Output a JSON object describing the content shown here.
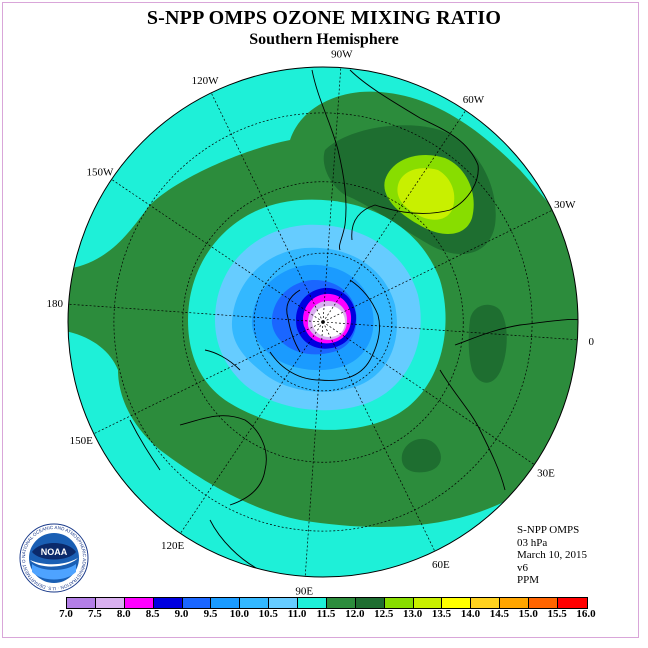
{
  "header": {
    "title": "S-NPP OMPS OZONE MIXING RATIO",
    "subtitle": "Southern Hemisphere"
  },
  "map": {
    "projection": "south-polar-stereographic",
    "longitude_labels": [
      {
        "text": "0",
        "lon": 0
      },
      {
        "text": "30E",
        "lon": 30
      },
      {
        "text": "60E",
        "lon": 60
      },
      {
        "text": "90E",
        "lon": 90
      },
      {
        "text": "120E",
        "lon": 120
      },
      {
        "text": "150E",
        "lon": 150
      },
      {
        "text": "180",
        "lon": 180
      },
      {
        "text": "150W",
        "lon": -150
      },
      {
        "text": "120W",
        "lon": -120
      },
      {
        "text": "90W",
        "lon": -90
      },
      {
        "text": "60W",
        "lon": -60
      },
      {
        "text": "30W",
        "lon": -30
      }
    ]
  },
  "info": {
    "instrument": "S-NPP OMPS",
    "level": "03 hPa",
    "date": "March 10, 2015",
    "version": "v6",
    "units": "PPM"
  },
  "colorbar": {
    "ticks": [
      "7.0",
      "7.5",
      "8.0",
      "8.5",
      "9.0",
      "9.5",
      "10.0",
      "10.5",
      "11.0",
      "11.5",
      "12.0",
      "12.5",
      "13.0",
      "13.5",
      "14.0",
      "14.5",
      "15.0",
      "15.5",
      "16.0"
    ],
    "colors": [
      "#b37fe6",
      "#d9b0f0",
      "#ff00ff",
      "#0000e0",
      "#1a66ff",
      "#1a9bff",
      "#33b8ff",
      "#66ccff",
      "#1ef0d8",
      "#2c8c3c",
      "#1e6e30",
      "#88dd00",
      "#c8f000",
      "#ffff00",
      "#ffd21e",
      "#ffa500",
      "#ff6400",
      "#ff0000",
      "#8b5a3c"
    ]
  },
  "logo": {
    "text": "NOAA",
    "ring_text": "NATIONAL OCEANIC AND ATMOSPHERIC ADMINISTRATION · U.S. DEPARTMENT OF COMMERCE"
  },
  "fills": {
    "outer": "#1ef0d8",
    "band": "#2c8c3c",
    "dark": "#1e6e30",
    "high1": "#88dd00",
    "high2": "#c8f000",
    "inner1": "#66ccff",
    "inner2": "#33b8ff",
    "inner3": "#1a9bff",
    "inner4": "#1a66ff",
    "inner5": "#0000e0",
    "inner6": "#ff00ff",
    "inner7": "#d9b0f0",
    "pole": "#ffffff"
  }
}
